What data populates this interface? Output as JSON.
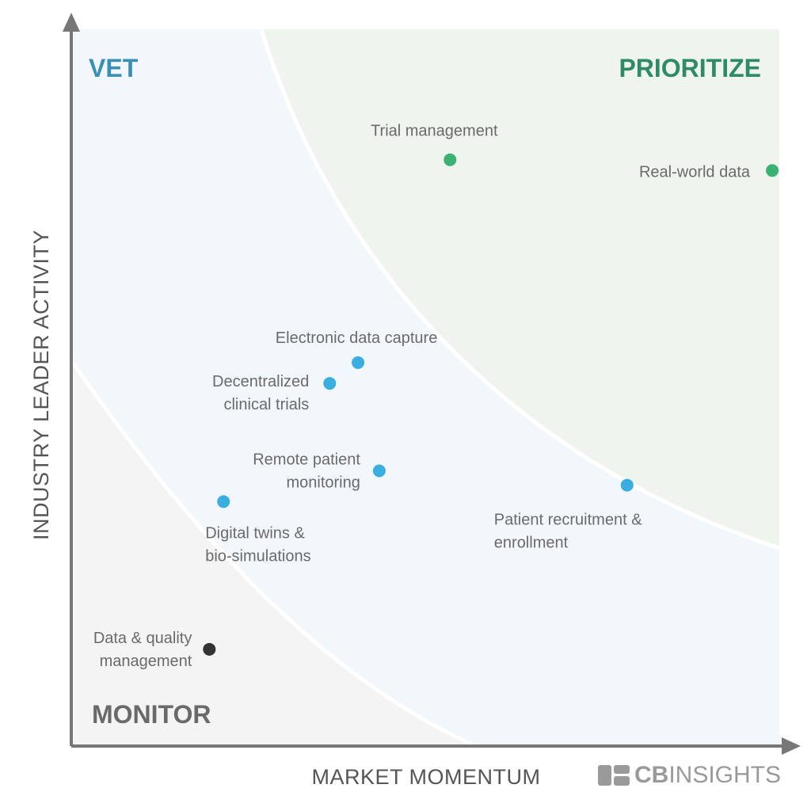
{
  "chart_data": {
    "type": "scatter",
    "xlabel": "MARKET MOMENTUM",
    "ylabel": "INDUSTRY LEADER ACTIVITY",
    "xlim": [
      0,
      100
    ],
    "ylim": [
      0,
      100
    ],
    "grid": false,
    "zones": [
      {
        "name": "VET",
        "color": "#3a8fb7",
        "fill": "#f2f7fb"
      },
      {
        "name": "PRIORITIZE",
        "color": "#2e8b63",
        "fill": "#f0f4ef"
      },
      {
        "name": "MONITOR",
        "color": "#6a6a6a",
        "fill": "#f4f4f4"
      }
    ],
    "points": [
      {
        "label": "Trial management",
        "x": 53.5,
        "y": 81.8,
        "zone": "PRIORITIZE",
        "color": "#3bb273"
      },
      {
        "label": "Real-world data",
        "x": 99,
        "y": 80.3,
        "zone": "PRIORITIZE",
        "color": "#3bb273"
      },
      {
        "label": "Electronic data capture",
        "x": 40.5,
        "y": 53.5,
        "zone": "VET",
        "color": "#3aaee0"
      },
      {
        "label": "Decentralized clinical trials",
        "x": 36.5,
        "y": 50.6,
        "zone": "VET",
        "color": "#3aaee0"
      },
      {
        "label": "Remote patient monitoring",
        "x": 43.5,
        "y": 38.4,
        "zone": "VET",
        "color": "#3aaee0"
      },
      {
        "label": "Patient recruitment & enrollment",
        "x": 78.5,
        "y": 36.4,
        "zone": "VET",
        "color": "#3aaee0"
      },
      {
        "label": "Digital twins & bio-simulations",
        "x": 21.5,
        "y": 34.1,
        "zone": "VET",
        "color": "#3aaee0"
      },
      {
        "label": "Data & quality management",
        "x": 19.5,
        "y": 13.5,
        "zone": "MONITOR",
        "color": "#333333"
      }
    ]
  },
  "brand": {
    "bold": "CB",
    "light": "INSIGHTS"
  }
}
